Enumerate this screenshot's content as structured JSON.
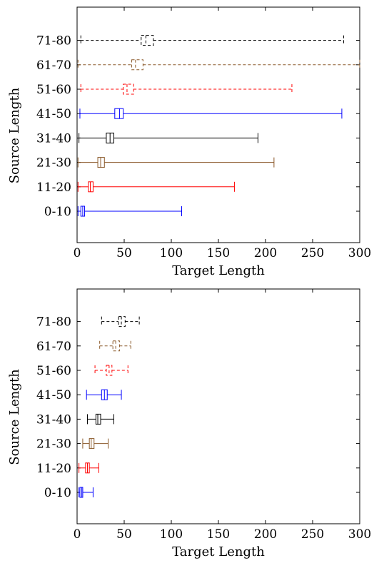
{
  "chart_data": [
    {
      "type": "box",
      "orientation": "horizontal",
      "xlabel": "Target Length",
      "ylabel": "Source Length",
      "xlim": [
        0,
        300
      ],
      "xticks": [
        0,
        50,
        100,
        150,
        200,
        250,
        300
      ],
      "grid": false,
      "categories": [
        "0-10",
        "11-20",
        "21-30",
        "31-40",
        "41-50",
        "51-60",
        "61-70",
        "71-80"
      ],
      "boxes": [
        {
          "category": "0-10",
          "whisker_low": 1,
          "q1": 4,
          "median": 6,
          "q3": 8,
          "whisker_high": 111,
          "color": "#0000ff",
          "dashed": false
        },
        {
          "category": "11-20",
          "whisker_low": 1,
          "q1": 12,
          "median": 14,
          "q3": 17,
          "whisker_high": 167,
          "color": "#ff0000",
          "dashed": false
        },
        {
          "category": "21-30",
          "whisker_low": 1,
          "q1": 22,
          "median": 25,
          "q3": 29,
          "whisker_high": 209,
          "color": "#8b5a2b",
          "dashed": false
        },
        {
          "category": "31-40",
          "whisker_low": 2,
          "q1": 31,
          "median": 35,
          "q3": 39,
          "whisker_high": 192,
          "color": "#000000",
          "dashed": false
        },
        {
          "category": "41-50",
          "whisker_low": 3,
          "q1": 40,
          "median": 45,
          "q3": 49,
          "whisker_high": 281,
          "color": "#0000ff",
          "dashed": false
        },
        {
          "category": "51-60",
          "whisker_low": 4,
          "q1": 49,
          "median": 53,
          "q3": 60,
          "whisker_high": 228,
          "color": "#ff0000",
          "dashed": true
        },
        {
          "category": "61-70",
          "whisker_low": 1,
          "q1": 58,
          "median": 62,
          "q3": 70,
          "whisker_high": 300,
          "color": "#8b5a2b",
          "dashed": true
        },
        {
          "category": "71-80",
          "whisker_low": 4,
          "q1": 68,
          "median": 73,
          "q3": 81,
          "whisker_high": 283,
          "color": "#000000",
          "dashed": true
        }
      ]
    },
    {
      "type": "box",
      "orientation": "horizontal",
      "xlabel": "Target Length",
      "ylabel": "Source Length",
      "xlim": [
        0,
        300
      ],
      "xticks": [
        0,
        50,
        100,
        150,
        200,
        250,
        300
      ],
      "grid": false,
      "categories": [
        "0-10",
        "11-20",
        "21-30",
        "31-40",
        "41-50",
        "51-60",
        "61-70",
        "71-80"
      ],
      "boxes": [
        {
          "category": "0-10",
          "whisker_low": 2,
          "q1": 3,
          "median": 5,
          "q3": 6,
          "whisker_high": 17,
          "color": "#0000ff",
          "dashed": false
        },
        {
          "category": "11-20",
          "whisker_low": 2,
          "q1": 9,
          "median": 11,
          "q3": 13,
          "whisker_high": 23,
          "color": "#ff0000",
          "dashed": false
        },
        {
          "category": "21-30",
          "whisker_low": 6,
          "q1": 13,
          "median": 15,
          "q3": 18,
          "whisker_high": 33,
          "color": "#8b5a2b",
          "dashed": false
        },
        {
          "category": "31-40",
          "whisker_low": 11,
          "q1": 20,
          "median": 22,
          "q3": 25,
          "whisker_high": 39,
          "color": "#000000",
          "dashed": false
        },
        {
          "category": "41-50",
          "whisker_low": 10,
          "q1": 26,
          "median": 29,
          "q3": 32,
          "whisker_high": 47,
          "color": "#0000ff",
          "dashed": false
        },
        {
          "category": "51-60",
          "whisker_low": 19,
          "q1": 31,
          "median": 34,
          "q3": 37,
          "whisker_high": 54,
          "color": "#ff0000",
          "dashed": true
        },
        {
          "category": "61-70",
          "whisker_low": 24,
          "q1": 38,
          "median": 41,
          "q3": 45,
          "whisker_high": 57,
          "color": "#8b5a2b",
          "dashed": true
        },
        {
          "category": "71-80",
          "whisker_low": 26,
          "q1": 44,
          "median": 47,
          "q3": 51,
          "whisker_high": 66,
          "color": "#000000",
          "dashed": true
        }
      ]
    }
  ]
}
